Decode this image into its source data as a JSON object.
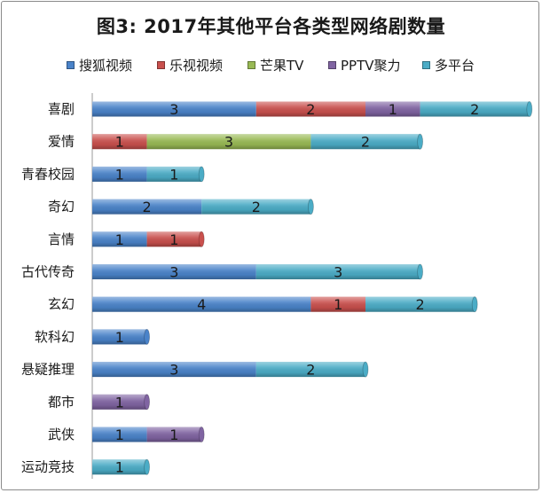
{
  "chart_data": {
    "type": "bar",
    "orientation": "horizontal",
    "stacked": true,
    "title": "图3: 2017年其他平台各类型网络剧数量",
    "legend_position": "top",
    "grid": false,
    "categories": [
      "喜剧",
      "爱情",
      "青春校园",
      "奇幻",
      "言情",
      "古代传奇",
      "玄幻",
      "软科幻",
      "悬疑推理",
      "都市",
      "武侠",
      "运动竞技"
    ],
    "series": [
      {
        "name": "搜狐视频",
        "color": "#4a83c9",
        "values": [
          3,
          0,
          1,
          2,
          1,
          3,
          4,
          1,
          3,
          0,
          1,
          0
        ]
      },
      {
        "name": "乐视视频",
        "color": "#c9504d",
        "values": [
          2,
          1,
          0,
          0,
          1,
          0,
          1,
          0,
          0,
          0,
          0,
          0
        ]
      },
      {
        "name": "芒果TV",
        "color": "#98b954",
        "values": [
          0,
          3,
          0,
          0,
          0,
          0,
          0,
          0,
          0,
          0,
          0,
          0
        ]
      },
      {
        "name": "PPTV聚力",
        "color": "#8064a2",
        "values": [
          1,
          0,
          0,
          0,
          0,
          0,
          0,
          0,
          0,
          1,
          1,
          0
        ]
      },
      {
        "name": "多平台",
        "color": "#4bacc6",
        "values": [
          2,
          2,
          1,
          2,
          0,
          3,
          2,
          0,
          2,
          0,
          0,
          1
        ]
      }
    ],
    "xlim": [
      0,
      8
    ]
  }
}
